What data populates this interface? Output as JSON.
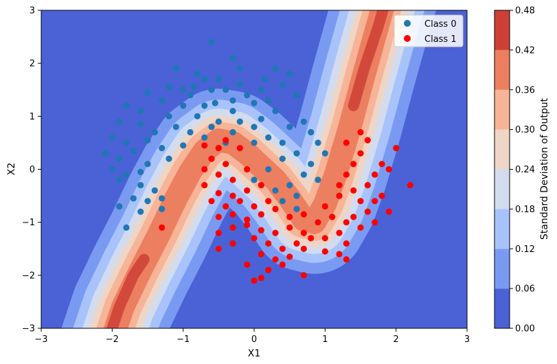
{
  "chart_data": {
    "type": "scatter",
    "title": "",
    "xlabel": "X1",
    "ylabel": "X2",
    "xlim": [
      -3,
      3
    ],
    "ylim": [
      -3,
      3
    ],
    "xticks": [
      "−3",
      "−2",
      "−1",
      "0",
      "1",
      "2",
      "3"
    ],
    "yticks": [
      "−3",
      "−2",
      "−1",
      "0",
      "1",
      "2",
      "3"
    ],
    "grid": false,
    "legend_position": "top-right",
    "background_contour": {
      "quantity": "Standard Deviation of Output",
      "levels": [
        0.0,
        0.06,
        0.12,
        0.18,
        0.24,
        0.3,
        0.36,
        0.42,
        0.48
      ],
      "level_colors": [
        "#4a62d6",
        "#7a9af2",
        "#a8c3fb",
        "#d2dcee",
        "#eed5c6",
        "#f7b497",
        "#ec7f60",
        "#ce4036"
      ],
      "colormap": "coolwarm"
    },
    "colorbar": {
      "label": "Standard Deviation of Output",
      "ticks": [
        "0.00",
        "0.06",
        "0.12",
        "0.18",
        "0.24",
        "0.30",
        "0.36",
        "0.42",
        "0.48"
      ]
    },
    "series": [
      {
        "name": "Class 0",
        "color": "#1f77b4",
        "points": [
          [
            -1.1,
            1.9
          ],
          [
            -0.6,
            2.4
          ],
          [
            -0.3,
            2.1
          ],
          [
            -0.2,
            1.9
          ],
          [
            0.3,
            1.9
          ],
          [
            0.5,
            1.8
          ],
          [
            -0.8,
            1.8
          ],
          [
            -0.7,
            1.7
          ],
          [
            -0.5,
            1.7
          ],
          [
            -0.2,
            1.6
          ],
          [
            0.1,
            1.5
          ],
          [
            0.4,
            1.6
          ],
          [
            -1.0,
            1.5
          ],
          [
            -0.9,
            1.4
          ],
          [
            -0.6,
            1.5
          ],
          [
            -0.4,
            1.5
          ],
          [
            -0.1,
            1.4
          ],
          [
            0.2,
            1.3
          ],
          [
            0.6,
            1.4
          ],
          [
            -1.5,
            1.45
          ],
          [
            -1.3,
            1.3
          ],
          [
            -1.0,
            1.2
          ],
          [
            -0.7,
            1.2
          ],
          [
            -0.3,
            1.1
          ],
          [
            0.0,
            1.25
          ],
          [
            0.3,
            1.1
          ],
          [
            -1.8,
            1.2
          ],
          [
            -1.6,
            1.1
          ],
          [
            -1.2,
            1.0
          ],
          [
            -0.8,
            1.0
          ],
          [
            -0.5,
            0.9
          ],
          [
            -0.2,
            0.9
          ],
          [
            0.1,
            0.95
          ],
          [
            -1.9,
            0.9
          ],
          [
            -1.6,
            0.85
          ],
          [
            -1.4,
            0.7
          ],
          [
            -1.1,
            0.8
          ],
          [
            -0.9,
            0.7
          ],
          [
            -0.6,
            0.8
          ],
          [
            -0.3,
            0.7
          ],
          [
            0.0,
            0.8
          ],
          [
            -2.0,
            0.6
          ],
          [
            -1.8,
            0.5
          ],
          [
            -1.5,
            0.55
          ],
          [
            -1.3,
            0.4
          ],
          [
            -1.0,
            0.45
          ],
          [
            -0.7,
            0.6
          ],
          [
            -0.4,
            0.5
          ],
          [
            -2.1,
            0.3
          ],
          [
            -1.9,
            0.2
          ],
          [
            -1.7,
            0.35
          ],
          [
            -1.5,
            0.1
          ],
          [
            -1.2,
            0.2
          ],
          [
            -2.0,
            0.0
          ],
          [
            -1.8,
            -0.1
          ],
          [
            -1.6,
            -0.05
          ],
          [
            -1.9,
            -0.2
          ],
          [
            -1.6,
            -0.3
          ],
          [
            -1.4,
            -0.4
          ],
          [
            -1.7,
            -0.55
          ],
          [
            -1.5,
            -0.6
          ],
          [
            -1.3,
            -0.55
          ],
          [
            -1.9,
            -0.7
          ],
          [
            -1.6,
            -0.8
          ],
          [
            -1.3,
            -0.75
          ],
          [
            -1.8,
            -1.1
          ],
          [
            0.0,
            0.5
          ],
          [
            0.2,
            0.6
          ],
          [
            0.4,
            0.5
          ],
          [
            0.5,
            0.8
          ],
          [
            0.7,
            0.9
          ],
          [
            0.8,
            0.7
          ],
          [
            0.9,
            0.5
          ],
          [
            0.6,
            0.3
          ],
          [
            0.4,
            0.2
          ],
          [
            0.2,
            0.0
          ],
          [
            0.0,
            -0.2
          ],
          [
            0.3,
            -0.4
          ],
          [
            0.5,
            -0.3
          ],
          [
            0.7,
            -0.1
          ],
          [
            0.8,
            0.1
          ],
          [
            1.0,
            0.3
          ],
          [
            0.9,
            -0.2
          ],
          [
            0.6,
            -0.5
          ],
          [
            0.4,
            -0.6
          ],
          [
            0.6,
            -0.75
          ],
          [
            0.3,
            1.9
          ],
          [
            -0.3,
            1.3
          ],
          [
            -0.55,
            1.25
          ],
          [
            0.15,
            1.7
          ],
          [
            -0.85,
            1.55
          ],
          [
            -1.2,
            1.55
          ]
        ]
      },
      {
        "name": "Class 1",
        "color": "#ff0000",
        "points": [
          [
            -1.3,
            -1.1
          ],
          [
            -0.7,
            0.45
          ],
          [
            -0.5,
            0.4
          ],
          [
            -0.4,
            0.55
          ],
          [
            -0.2,
            0.4
          ],
          [
            -0.6,
            0.2
          ],
          [
            -0.4,
            0.1
          ],
          [
            -0.7,
            0.0
          ],
          [
            -0.5,
            -0.1
          ],
          [
            -0.3,
            -0.2
          ],
          [
            -0.1,
            0.0
          ],
          [
            -0.7,
            -0.3
          ],
          [
            -0.5,
            -0.45
          ],
          [
            -0.3,
            -0.5
          ],
          [
            -0.1,
            -0.4
          ],
          [
            0.1,
            -0.3
          ],
          [
            -0.6,
            -0.6
          ],
          [
            -0.4,
            -0.7
          ],
          [
            -0.2,
            -0.6
          ],
          [
            0.0,
            -0.7
          ],
          [
            0.2,
            -0.6
          ],
          [
            -0.5,
            -0.9
          ],
          [
            -0.3,
            -0.85
          ],
          [
            -0.1,
            -0.95
          ],
          [
            0.1,
            -0.85
          ],
          [
            0.3,
            -0.75
          ],
          [
            0.5,
            -0.9
          ],
          [
            0.7,
            -0.85
          ],
          [
            -0.5,
            -1.2
          ],
          [
            -0.3,
            -1.1
          ],
          [
            -0.1,
            -1.05
          ],
          [
            0.1,
            -1.15
          ],
          [
            0.3,
            -1.2
          ],
          [
            0.5,
            -1.1
          ],
          [
            0.7,
            -1.2
          ],
          [
            0.9,
            -1.0
          ],
          [
            1.1,
            -0.9
          ],
          [
            -0.5,
            -1.5
          ],
          [
            -0.3,
            -1.4
          ],
          [
            0.0,
            -1.3
          ],
          [
            0.2,
            -1.4
          ],
          [
            0.4,
            -1.5
          ],
          [
            0.6,
            -1.4
          ],
          [
            0.8,
            -1.3
          ],
          [
            1.0,
            -1.3
          ],
          [
            1.2,
            -1.2
          ],
          [
            0.1,
            -1.6
          ],
          [
            0.3,
            -1.7
          ],
          [
            0.5,
            -1.65
          ],
          [
            0.7,
            -1.5
          ],
          [
            1.0,
            -1.55
          ],
          [
            1.2,
            -1.6
          ],
          [
            1.3,
            -1.4
          ],
          [
            -0.1,
            -1.8
          ],
          [
            0.2,
            -1.9
          ],
          [
            0.4,
            -1.8
          ],
          [
            0.7,
            -2.0
          ],
          [
            1.3,
            -1.7
          ],
          [
            0.0,
            -2.1
          ],
          [
            0.1,
            -2.05
          ],
          [
            1.0,
            -0.7
          ],
          [
            1.2,
            -0.5
          ],
          [
            1.2,
            -0.3
          ],
          [
            1.3,
            -0.1
          ],
          [
            1.4,
            0.1
          ],
          [
            1.5,
            0.3
          ],
          [
            1.6,
            0.55
          ],
          [
            1.5,
            0.7
          ],
          [
            1.3,
            0.5
          ],
          [
            1.4,
            -0.4
          ],
          [
            1.5,
            -0.6
          ],
          [
            1.6,
            -0.3
          ],
          [
            1.7,
            -0.1
          ],
          [
            1.8,
            0.1
          ],
          [
            1.9,
            0.0
          ],
          [
            2.0,
            0.4
          ],
          [
            2.2,
            -0.3
          ],
          [
            1.8,
            -0.5
          ],
          [
            1.9,
            -0.8
          ],
          [
            1.7,
            -1.0
          ],
          [
            1.5,
            -1.1
          ],
          [
            1.4,
            -0.9
          ],
          [
            1.3,
            -1.0
          ],
          [
            1.6,
            -0.8
          ],
          [
            1.7,
            -0.6
          ]
        ]
      }
    ]
  }
}
